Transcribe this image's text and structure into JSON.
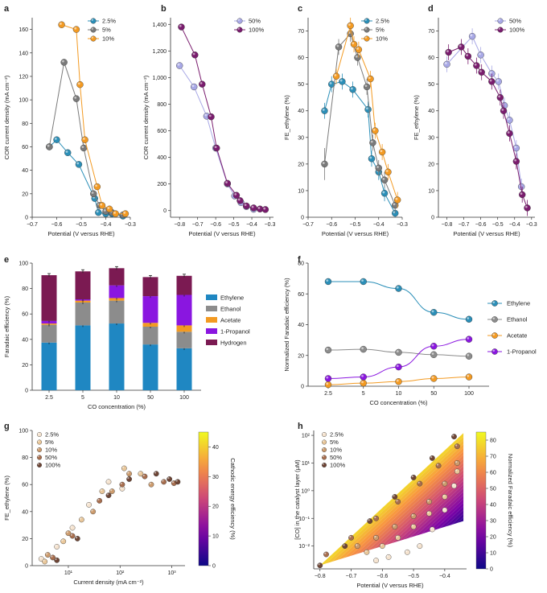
{
  "chart_data": [
    {
      "panel": "a",
      "type": "line",
      "title": "",
      "xlabel": "Potential (V versus RHE)",
      "ylabel": "COR current density (mA cm⁻²)",
      "xlim": [
        -0.7,
        -0.3
      ],
      "ylim": [
        0,
        170
      ],
      "xticks": [
        -0.7,
        -0.6,
        -0.5,
        -0.4,
        -0.3
      ],
      "yticks": [
        0,
        20,
        40,
        60,
        80,
        100,
        120,
        140,
        160
      ],
      "legend": "top-right",
      "series": [
        {
          "name": "2.5%",
          "color": "#2b8fb8",
          "x": [
            -0.63,
            -0.6,
            -0.555,
            -0.51,
            -0.445,
            -0.43,
            -0.4,
            -0.375,
            -0.33
          ],
          "y": [
            60,
            66,
            55,
            45,
            16,
            4,
            3,
            3,
            1
          ],
          "yerr": []
        },
        {
          "name": "5%",
          "color": "#7a7a7a",
          "x": [
            -0.63,
            -0.57,
            -0.52,
            -0.49,
            -0.45,
            -0.425,
            -0.4,
            -0.375,
            -0.33
          ],
          "y": [
            60,
            132,
            101,
            59,
            20,
            10,
            5,
            4,
            2
          ],
          "yerr": []
        },
        {
          "name": "10%",
          "color": "#f39a22",
          "x": [
            -0.58,
            -0.52,
            -0.505,
            -0.485,
            -0.435,
            -0.415,
            -0.385,
            -0.36,
            -0.32
          ],
          "y": [
            164,
            160,
            113,
            66,
            26,
            10,
            7,
            3,
            3
          ],
          "yerr": []
        }
      ]
    },
    {
      "panel": "b",
      "type": "line",
      "title": "",
      "xlabel": "Potential (V versus RHE)",
      "ylabel": "COR current density (mA cm⁻²)",
      "xlim": [
        -0.85,
        -0.28
      ],
      "ylim": [
        -50,
        1450
      ],
      "xticks": [
        -0.8,
        -0.7,
        -0.6,
        -0.5,
        -0.4,
        -0.3
      ],
      "yticks": [
        0,
        200,
        400,
        600,
        800,
        1000,
        1200,
        1400
      ],
      "ytick_labels": [
        "0",
        "200",
        "400",
        "600",
        "800",
        "1,000",
        "1,200",
        "1,400"
      ],
      "legend": "top-right",
      "series": [
        {
          "name": "50%",
          "color": "#a8a8e6",
          "x": [
            -0.8,
            -0.72,
            -0.65,
            -0.6,
            -0.535,
            -0.495,
            -0.46,
            -0.43,
            -0.39
          ],
          "y": [
            1090,
            930,
            710,
            470,
            200,
            110,
            60,
            30,
            10
          ],
          "yerr": []
        },
        {
          "name": "100%",
          "color": "#7a1c6e",
          "x": [
            -0.79,
            -0.715,
            -0.675,
            -0.625,
            -0.595,
            -0.535,
            -0.485,
            -0.465,
            -0.43,
            -0.39,
            -0.355,
            -0.325
          ],
          "y": [
            1380,
            1170,
            950,
            705,
            470,
            205,
            115,
            75,
            35,
            20,
            12,
            8
          ],
          "yerr": []
        }
      ]
    },
    {
      "panel": "c",
      "type": "line",
      "title": "",
      "xlabel": "Potential (V versus RHE)",
      "ylabel": "FE_ethylene (%)",
      "xlim": [
        -0.7,
        -0.3
      ],
      "ylim": [
        0,
        75
      ],
      "xticks": [
        -0.7,
        -0.6,
        -0.5,
        -0.4,
        -0.3
      ],
      "yticks": [
        0,
        10,
        20,
        30,
        40,
        50,
        60,
        70
      ],
      "legend": "top-right",
      "series": [
        {
          "name": "2.5%",
          "color": "#2b8fb8",
          "x": [
            -0.63,
            -0.6,
            -0.555,
            -0.51,
            -0.445,
            -0.43,
            -0.4,
            -0.375,
            -0.33
          ],
          "y": [
            40,
            50,
            51,
            48,
            40.5,
            22,
            17,
            9,
            1.5
          ],
          "yerr": [
            3,
            3,
            3,
            3,
            3,
            3,
            3,
            3,
            1.5
          ]
        },
        {
          "name": "5%",
          "color": "#7a7a7a",
          "x": [
            -0.63,
            -0.57,
            -0.52,
            -0.49,
            -0.45,
            -0.425,
            -0.4,
            -0.375,
            -0.33
          ],
          "y": [
            20,
            64,
            69,
            60,
            49,
            28,
            18.5,
            14,
            4.5
          ],
          "yerr": [
            6,
            3,
            3,
            3,
            3,
            3,
            3,
            3,
            3
          ]
        },
        {
          "name": "10%",
          "color": "#f39a22",
          "x": [
            -0.58,
            -0.52,
            -0.505,
            -0.485,
            -0.435,
            -0.415,
            -0.385,
            -0.36,
            -0.32
          ],
          "y": [
            53,
            72,
            65,
            63,
            52,
            32.5,
            24.5,
            17,
            6.5
          ],
          "yerr": [
            3,
            3,
            3,
            3,
            3,
            3,
            3,
            3,
            3
          ]
        }
      ]
    },
    {
      "panel": "d",
      "type": "line",
      "title": "",
      "xlabel": "Potential (V versus RHE)",
      "ylabel": "FE_ethylene (%)",
      "xlim": [
        -0.85,
        -0.28
      ],
      "ylim": [
        0,
        75
      ],
      "xticks": [
        -0.8,
        -0.7,
        -0.6,
        -0.5,
        -0.4,
        -0.3
      ],
      "yticks": [
        0,
        10,
        20,
        30,
        40,
        50,
        60,
        70
      ],
      "legend": "top-right",
      "series": [
        {
          "name": "50%",
          "color": "#a8a8e6",
          "x": [
            -0.8,
            -0.65,
            -0.6,
            -0.535,
            -0.495,
            -0.46,
            -0.43,
            -0.39,
            -0.36
          ],
          "y": [
            57.5,
            68,
            61,
            54,
            51,
            42,
            36.5,
            26,
            11.5
          ],
          "yerr": [
            3,
            3,
            3,
            3,
            3,
            3,
            3,
            3,
            3
          ]
        },
        {
          "name": "100%",
          "color": "#7a1c6e",
          "x": [
            -0.79,
            -0.715,
            -0.675,
            -0.625,
            -0.595,
            -0.535,
            -0.485,
            -0.465,
            -0.43,
            -0.39,
            -0.355,
            -0.325
          ],
          "y": [
            62,
            64,
            60.5,
            57,
            54.5,
            51,
            45,
            40,
            31.5,
            21,
            8.5,
            3.5
          ],
          "yerr": [
            3,
            3,
            3,
            3,
            3,
            3,
            3,
            3,
            3,
            3,
            3,
            3
          ]
        }
      ]
    },
    {
      "panel": "e",
      "type": "bar",
      "stacked": true,
      "title": "",
      "xlabel": "CO concentration (%)",
      "ylabel": "Faradaic efficiency (%)",
      "categories": [
        "2.5",
        "5",
        "10",
        "50",
        "100"
      ],
      "ylim": [
        0,
        100
      ],
      "yticks": [
        0,
        20,
        40,
        60,
        80,
        100
      ],
      "legend": "right",
      "series": [
        {
          "name": "Ethylene",
          "color": "#1f87c2",
          "values": [
            37.5,
            51,
            52.5,
            36,
            33
          ]
        },
        {
          "name": "Ethanol",
          "color": "#8c8c8c",
          "values": [
            14,
            18,
            18,
            14,
            13
          ]
        },
        {
          "name": "Acetate",
          "color": "#f39a22",
          "values": [
            1,
            1.5,
            2,
            3,
            5
          ]
        },
        {
          "name": "1-Propanol",
          "color": "#8a16e0",
          "values": [
            2,
            1,
            10,
            21,
            24
          ]
        },
        {
          "name": "Hydrogen",
          "color": "#7b1a52",
          "values": [
            36,
            22,
            13.5,
            15,
            15
          ]
        }
      ]
    },
    {
      "panel": "f",
      "type": "line",
      "title": "",
      "xlabel": "CO concentration (%)",
      "ylabel": "Normalized Faradaic efficiency (%)",
      "categories": [
        "2.5",
        "5",
        "10",
        "50",
        "100"
      ],
      "ylim": [
        0,
        80
      ],
      "yticks": [
        0,
        20,
        40,
        60,
        80
      ],
      "legend": "right",
      "series": [
        {
          "name": "Ethylene",
          "color": "#2b8fb8",
          "values": [
            68,
            68,
            63.5,
            48,
            43.5
          ]
        },
        {
          "name": "Ethanol",
          "color": "#8c8c8c",
          "values": [
            23.5,
            24,
            22,
            20.5,
            19.5
          ]
        },
        {
          "name": "Acetate",
          "color": "#f39a22",
          "values": [
            1,
            2,
            3,
            5,
            6
          ]
        },
        {
          "name": "1-Propanol",
          "color": "#8a16e0",
          "values": [
            5,
            6,
            12.5,
            26,
            30.5
          ]
        }
      ]
    },
    {
      "panel": "g",
      "type": "scatter",
      "title": "",
      "xlabel": "Current density (mA cm⁻²)",
      "ylabel": "FE_ethylene (%)",
      "xscale": "log",
      "xlim": [
        2,
        1800
      ],
      "ylim": [
        0,
        100
      ],
      "xticks": [
        10,
        100,
        1000
      ],
      "xtick_labels": [
        "10¹",
        "10²",
        "10³"
      ],
      "yticks": [
        0,
        20,
        40,
        60,
        80,
        100
      ],
      "colorbar": {
        "label": "Cathodic energy efficiency (%)",
        "range": [
          0,
          45
        ],
        "ticks": [
          0,
          10,
          20,
          30,
          40
        ]
      },
      "legend": "top-left",
      "series": [
        {
          "name": "2.5%",
          "color": "#f5e3cf",
          "x": [
            3,
            6,
            12,
            25,
            60,
            110
          ],
          "y": [
            5,
            14,
            28,
            45,
            62,
            57
          ]
        },
        {
          "name": "5%",
          "color": "#e9c79a",
          "x": [
            3.5,
            8,
            18,
            45,
            120,
            250
          ],
          "y": [
            3,
            18,
            34,
            55,
            72,
            68
          ]
        },
        {
          "name": "10%",
          "color": "#cc9b6d",
          "x": [
            4,
            10,
            30,
            70,
            150,
            400
          ],
          "y": [
            8,
            24,
            40,
            55,
            68,
            60
          ]
        },
        {
          "name": "50%",
          "color": "#a86e4e",
          "x": [
            5,
            12,
            40,
            110,
            300,
            700,
            1100
          ],
          "y": [
            6,
            22,
            48,
            60,
            66,
            62,
            61
          ]
        },
        {
          "name": "100%",
          "color": "#6e4535",
          "x": [
            6,
            15,
            60,
            150,
            500,
            900,
            1300
          ],
          "y": [
            4,
            20,
            52,
            64,
            68,
            64,
            62
          ]
        }
      ]
    },
    {
      "panel": "h",
      "type": "scatter",
      "title": "",
      "xlabel": "Potential (V versus RHE)",
      "ylabel": "[CO] in the catalyst layer (μM)",
      "yscale": "log",
      "xlim": [
        -0.82,
        -0.33
      ],
      "ylim": [
        0.0015,
        150
      ],
      "xticks": [
        -0.8,
        -0.7,
        -0.6,
        -0.5,
        -0.4
      ],
      "yticks": [
        0.01,
        0.1,
        1,
        10,
        100
      ],
      "ytick_labels": [
        "10⁻²",
        "10⁻¹",
        "10⁰",
        "10¹",
        "10²"
      ],
      "colorbar": {
        "label": "Normalized Faradaic efficiency (%)",
        "range": [
          0,
          85
        ],
        "ticks": [
          0,
          10,
          20,
          30,
          40,
          50,
          60,
          70,
          80
        ]
      },
      "legend": "top-left",
      "series": [
        {
          "name": "2.5%",
          "color": "#f5e3cf",
          "x": [
            -0.62,
            -0.58,
            -0.52,
            -0.48,
            -0.44,
            -0.4,
            -0.37
          ],
          "y": [
            0.003,
            0.004,
            0.006,
            0.01,
            0.04,
            0.2,
            1.5
          ]
        },
        {
          "name": "5%",
          "color": "#e9c79a",
          "x": [
            -0.65,
            -0.6,
            -0.55,
            -0.5,
            -0.45,
            -0.4,
            -0.36
          ],
          "y": [
            0.006,
            0.01,
            0.02,
            0.05,
            0.15,
            0.6,
            5
          ]
        },
        {
          "name": "10%",
          "color": "#cc9b6d",
          "x": [
            -0.68,
            -0.62,
            -0.56,
            -0.5,
            -0.45,
            -0.4,
            -0.36
          ],
          "y": [
            0.01,
            0.02,
            0.05,
            0.12,
            0.4,
            1.8,
            10
          ]
        },
        {
          "name": "50%",
          "color": "#a86e4e",
          "x": [
            -0.78,
            -0.7,
            -0.62,
            -0.55,
            -0.48,
            -0.42,
            -0.36
          ],
          "y": [
            0.005,
            0.02,
            0.1,
            0.4,
            1.8,
            8,
            40
          ]
        },
        {
          "name": "100%",
          "color": "#6e4535",
          "x": [
            -0.8,
            -0.72,
            -0.64,
            -0.56,
            -0.5,
            -0.44,
            -0.37
          ],
          "y": [
            0.002,
            0.01,
            0.08,
            0.6,
            3,
            15,
            90
          ]
        }
      ]
    }
  ]
}
